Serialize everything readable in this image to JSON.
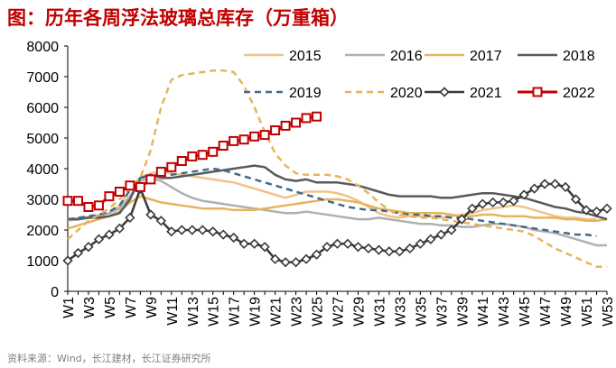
{
  "title": "图：历年各周浮法玻璃总库存（万重箱）",
  "source": "资料来源：Wind，长江建材，长江证券研究所",
  "chart_data": {
    "type": "line",
    "title": "图：历年各周浮法玻璃总库存（万重箱）",
    "xlabel": "",
    "ylabel": "",
    "ylim": [
      0,
      8000
    ],
    "yticks": [
      0,
      1000,
      2000,
      3000,
      4000,
      5000,
      6000,
      7000,
      8000
    ],
    "x": [
      "W1",
      "W2",
      "W3",
      "W4",
      "W5",
      "W6",
      "W7",
      "W8",
      "W9",
      "W10",
      "W11",
      "W12",
      "W13",
      "W14",
      "W15",
      "W16",
      "W17",
      "W18",
      "W19",
      "W20",
      "W21",
      "W22",
      "W23",
      "W24",
      "W25",
      "W26",
      "W27",
      "W28",
      "W29",
      "W30",
      "W31",
      "W32",
      "W33",
      "W34",
      "W35",
      "W36",
      "W37",
      "W38",
      "W39",
      "W40",
      "W41",
      "W42",
      "W43",
      "W44",
      "W45",
      "W46",
      "W47",
      "W48",
      "W49",
      "W50",
      "W51",
      "W52",
      "W53"
    ],
    "x_tick_labels": [
      "W1",
      "W3",
      "W5",
      "W7",
      "W9",
      "W11",
      "W13",
      "W15",
      "W17",
      "W19",
      "W21",
      "W23",
      "W25",
      "W27",
      "W29",
      "W31",
      "W33",
      "W35",
      "W37",
      "W39",
      "W41",
      "W43",
      "W45",
      "W47",
      "W49",
      "W51",
      "W53"
    ],
    "legend_position": "top",
    "grid": false,
    "series": [
      {
        "name": "2015",
        "color": "#f0c28c",
        "style": "solid",
        "marker": "none",
        "values": [
          2300,
          2350,
          2400,
          2450,
          2550,
          2800,
          3300,
          3700,
          3850,
          3900,
          3850,
          3800,
          3750,
          3700,
          3650,
          3600,
          3550,
          3450,
          3350,
          3250,
          3150,
          3050,
          3150,
          3250,
          3250,
          3250,
          3200,
          3100,
          2950,
          2750,
          2550,
          2450,
          2400,
          2450,
          2450,
          2450,
          2400,
          2450,
          2500,
          2550,
          2650,
          2700,
          2750,
          2800,
          2750,
          2650,
          2550,
          2450,
          2400,
          2400,
          2350,
          2350,
          null
        ]
      },
      {
        "name": "2016",
        "color": "#b0b0b0",
        "style": "solid",
        "marker": "none",
        "values": [
          2350,
          2380,
          2420,
          2480,
          2550,
          2700,
          3100,
          3600,
          3700,
          3600,
          3400,
          3200,
          3050,
          2950,
          2900,
          2850,
          2800,
          2750,
          2700,
          2650,
          2600,
          2550,
          2550,
          2600,
          2550,
          2500,
          2450,
          2400,
          2350,
          2350,
          2400,
          2350,
          2300,
          2250,
          2200,
          2200,
          2150,
          2150,
          2100,
          2100,
          2150,
          2200,
          2200,
          2150,
          2100,
          2000,
          1950,
          1900,
          1800,
          1700,
          1600,
          1500,
          1500
        ]
      },
      {
        "name": "2017",
        "color": "#e6b45a",
        "style": "solid",
        "marker": "none",
        "values": [
          2050,
          2150,
          2250,
          2350,
          2450,
          2600,
          2900,
          3100,
          3000,
          2900,
          2850,
          2800,
          2750,
          2700,
          2700,
          2700,
          2650,
          2650,
          2650,
          2700,
          2750,
          2800,
          2850,
          2900,
          2950,
          3000,
          3000,
          2950,
          2900,
          2800,
          2700,
          2650,
          2600,
          2550,
          2550,
          2550,
          2550,
          2500,
          2450,
          2450,
          2500,
          2500,
          2450,
          2450,
          2450,
          2400,
          2400,
          2400,
          2350,
          2350,
          2300,
          2300,
          2350
        ]
      },
      {
        "name": "2018",
        "color": "#595959",
        "style": "solid",
        "marker": "none",
        "values": [
          2350,
          2350,
          2400,
          2400,
          2450,
          2550,
          3000,
          3700,
          3800,
          3700,
          3700,
          3750,
          3800,
          3850,
          3900,
          3950,
          4000,
          4050,
          4100,
          4050,
          3800,
          3650,
          3600,
          3650,
          3550,
          3550,
          3550,
          3500,
          3450,
          3350,
          3250,
          3150,
          3100,
          3100,
          3100,
          3100,
          3050,
          3050,
          3100,
          3150,
          3200,
          3200,
          3150,
          3100,
          3050,
          2950,
          2850,
          2750,
          2700,
          2600,
          2550,
          2450,
          2350
        ]
      },
      {
        "name": "2019",
        "color": "#44698b",
        "style": "dash",
        "marker": "none",
        "values": [
          2350,
          2400,
          2450,
          2500,
          2600,
          2800,
          3300,
          3700,
          3750,
          3750,
          3800,
          3850,
          3900,
          3950,
          4000,
          3950,
          3850,
          3750,
          3650,
          3550,
          3450,
          3350,
          3250,
          3150,
          3050,
          2950,
          2850,
          2750,
          2700,
          2650,
          2650,
          2600,
          2550,
          2500,
          2500,
          2450,
          2450,
          2400,
          2400,
          2350,
          2300,
          2250,
          2200,
          2150,
          2100,
          2050,
          2000,
          1950,
          1900,
          1850,
          1850,
          1800,
          null
        ]
      },
      {
        "name": "2020",
        "color": "#e6b45a",
        "style": "dash",
        "marker": "none",
        "values": [
          1700,
          2000,
          2300,
          2500,
          2700,
          3000,
          3400,
          3700,
          4600,
          6000,
          6900,
          7050,
          7100,
          7150,
          7200,
          7200,
          7150,
          6700,
          6000,
          5200,
          4500,
          4100,
          3850,
          3800,
          3800,
          3800,
          3750,
          3650,
          3450,
          3200,
          2900,
          2650,
          2500,
          2450,
          2400,
          2400,
          2350,
          2300,
          2250,
          2200,
          2150,
          2100,
          2050,
          2000,
          1950,
          1800,
          1600,
          1400,
          1250,
          1100,
          950,
          800,
          800
        ]
      },
      {
        "name": "2021",
        "color": "#3a3a3a",
        "style": "solid",
        "marker": "diamond",
        "values": [
          1000,
          1250,
          1450,
          1700,
          1850,
          2050,
          2400,
          3350,
          2500,
          2300,
          1950,
          2000,
          2000,
          2000,
          1950,
          1850,
          1750,
          1550,
          1550,
          1450,
          1050,
          950,
          950,
          1050,
          1200,
          1450,
          1550,
          1550,
          1450,
          1400,
          1350,
          1300,
          1300,
          1400,
          1550,
          1700,
          1850,
          2000,
          2350,
          2700,
          2850,
          2900,
          2900,
          2950,
          3150,
          3350,
          3500,
          3500,
          3400,
          3000,
          2650,
          2600,
          2700
        ]
      },
      {
        "name": "2022",
        "color": "#c00000",
        "style": "solid",
        "marker": "square",
        "values": [
          2950,
          2950,
          2750,
          2800,
          3100,
          3250,
          3450,
          3400,
          3650,
          3900,
          4050,
          4250,
          4400,
          4450,
          4550,
          4750,
          4900,
          4950,
          5050,
          5100,
          5250,
          5400,
          5500,
          5650,
          5700,
          null,
          null,
          null,
          null,
          null,
          null,
          null,
          null,
          null,
          null,
          null,
          null,
          null,
          null,
          null,
          null,
          null,
          null,
          null,
          null,
          null,
          null,
          null,
          null,
          null,
          null,
          null,
          null
        ]
      }
    ]
  }
}
